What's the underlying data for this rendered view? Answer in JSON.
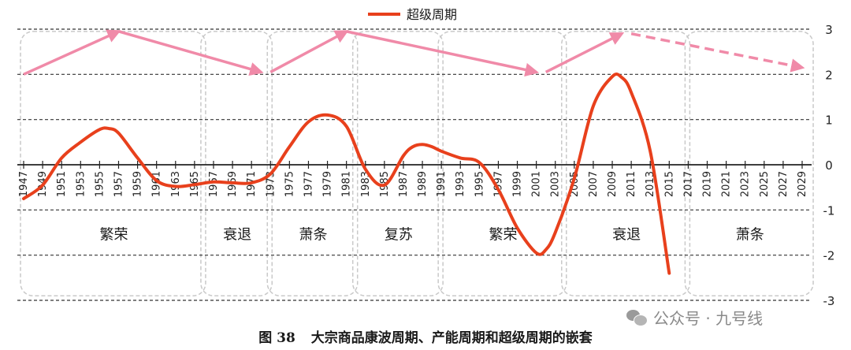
{
  "chart_data": {
    "type": "line",
    "legend": {
      "label": "超级周期",
      "color": "#e8401c",
      "position": "top-center"
    },
    "x_ticks": [
      "1947",
      "1949",
      "1951",
      "1953",
      "1955",
      "1957",
      "1959",
      "1961",
      "1963",
      "1965",
      "1967",
      "1969",
      "1971",
      "1973",
      "1975",
      "1977",
      "1979",
      "1981",
      "1983",
      "1985",
      "1987",
      "1989",
      "1991",
      "1993",
      "1995",
      "1997",
      "1999",
      "2001",
      "2003",
      "2005",
      "2007",
      "2009",
      "2011",
      "2013",
      "2015",
      "2017",
      "2019",
      "2021",
      "2023",
      "2025",
      "2027",
      "2029"
    ],
    "ylim": [
      -3,
      3
    ],
    "y_ticks": [
      "3",
      "2",
      "1",
      "0",
      "-1",
      "-2",
      "-3"
    ],
    "grid": "dashed horizontal",
    "series": [
      {
        "name": "超级周期",
        "color": "#e8401c",
        "points": [
          [
            1947,
            -0.75
          ],
          [
            1949,
            -0.45
          ],
          [
            1951,
            0.15
          ],
          [
            1953,
            0.5
          ],
          [
            1955,
            0.78
          ],
          [
            1956,
            0.8
          ],
          [
            1957,
            0.7
          ],
          [
            1959,
            0.15
          ],
          [
            1961,
            -0.35
          ],
          [
            1963,
            -0.48
          ],
          [
            1965,
            -0.44
          ],
          [
            1967,
            -0.38
          ],
          [
            1969,
            -0.4
          ],
          [
            1971,
            -0.4
          ],
          [
            1973,
            -0.2
          ],
          [
            1975,
            0.4
          ],
          [
            1977,
            0.95
          ],
          [
            1979,
            1.1
          ],
          [
            1981,
            0.85
          ],
          [
            1983,
            -0.1
          ],
          [
            1985,
            -0.45
          ],
          [
            1987,
            0.2
          ],
          [
            1988,
            0.4
          ],
          [
            1989,
            0.45
          ],
          [
            1990,
            0.4
          ],
          [
            1991,
            0.3
          ],
          [
            1993,
            0.15
          ],
          [
            1995,
            0.05
          ],
          [
            1997,
            -0.55
          ],
          [
            1999,
            -1.4
          ],
          [
            2001,
            -1.95
          ],
          [
            2002,
            -1.88
          ],
          [
            2003,
            -1.5
          ],
          [
            2005,
            -0.3
          ],
          [
            2007,
            1.3
          ],
          [
            2009,
            1.95
          ],
          [
            2010,
            1.93
          ],
          [
            2011,
            1.6
          ],
          [
            2013,
            0.3
          ],
          [
            2015,
            -2.4
          ]
        ]
      }
    ],
    "phases": [
      {
        "label": "繁荣",
        "start": 1947,
        "end": 1966
      },
      {
        "label": "衰退",
        "start": 1966,
        "end": 1973
      },
      {
        "label": "萧条",
        "start": 1973,
        "end": 1982
      },
      {
        "label": "复苏",
        "start": 1982,
        "end": 1991
      },
      {
        "label": "繁荣",
        "start": 1991,
        "end": 2004
      },
      {
        "label": "衰退",
        "start": 2004,
        "end": 2017
      },
      {
        "label": "萧条",
        "start": 2017,
        "end": 2030
      }
    ],
    "arrows": [
      {
        "from": [
          1947,
          2.0
        ],
        "to": [
          1957,
          2.95
        ],
        "style": "solid"
      },
      {
        "from": [
          1957,
          2.95
        ],
        "to": [
          1972,
          2.05
        ],
        "style": "solid"
      },
      {
        "from": [
          1973,
          2.05
        ],
        "to": [
          1981,
          2.95
        ],
        "style": "solid"
      },
      {
        "from": [
          1981,
          2.95
        ],
        "to": [
          2001,
          2.05
        ],
        "style": "solid"
      },
      {
        "from": [
          2002,
          2.05
        ],
        "to": [
          2010,
          2.9
        ],
        "style": "solid"
      },
      {
        "from": [
          2011,
          2.9
        ],
        "to": [
          2029,
          2.15
        ],
        "style": "dashed"
      }
    ],
    "arrow_color": "#f08aa8",
    "caption_number": "图 38",
    "caption_title": "大宗商品康波周期、产能周期和超级周期的嵌套"
  },
  "watermark": "公众号 · 九号线"
}
